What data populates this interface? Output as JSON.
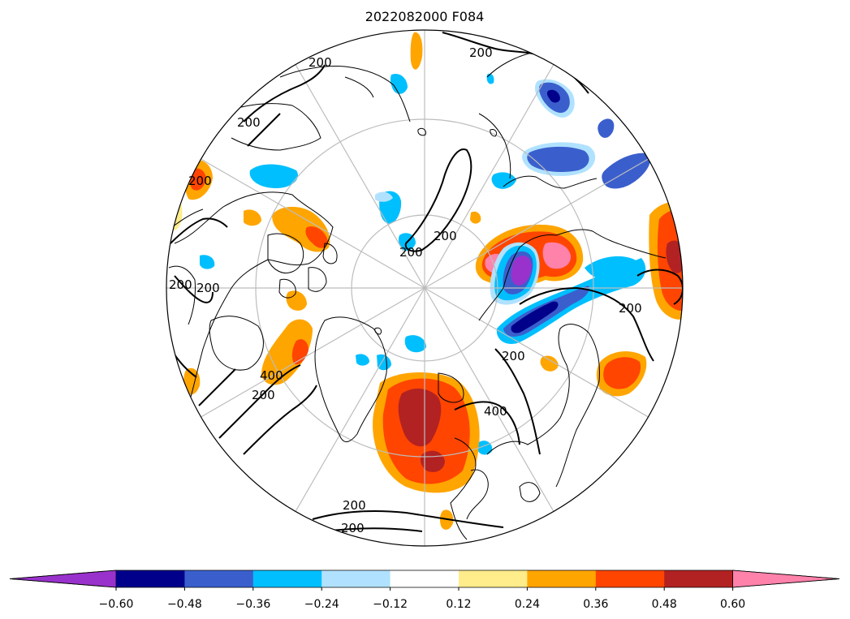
{
  "title": "2022082000 F084",
  "contour_labels": [
    "200",
    "200",
    "200",
    "200",
    "200",
    "200",
    "200",
    "200",
    "400",
    "200",
    "400",
    "200",
    "200",
    "200",
    "200"
  ],
  "colorbar": {
    "colors": [
      "#9932cc",
      "#00008b",
      "#3a5fcd",
      "#00bfff",
      "#b0e2ff",
      "#ffffff",
      "#ffec8b",
      "#ffa500",
      "#ff4500",
      "#b22222",
      "#ff82ab"
    ],
    "tick_labels": [
      "−0.60",
      "−0.48",
      "−0.36",
      "−0.24",
      "−0.12",
      "0.12",
      "0.24",
      "0.36",
      "0.48",
      "0.60"
    ]
  }
}
